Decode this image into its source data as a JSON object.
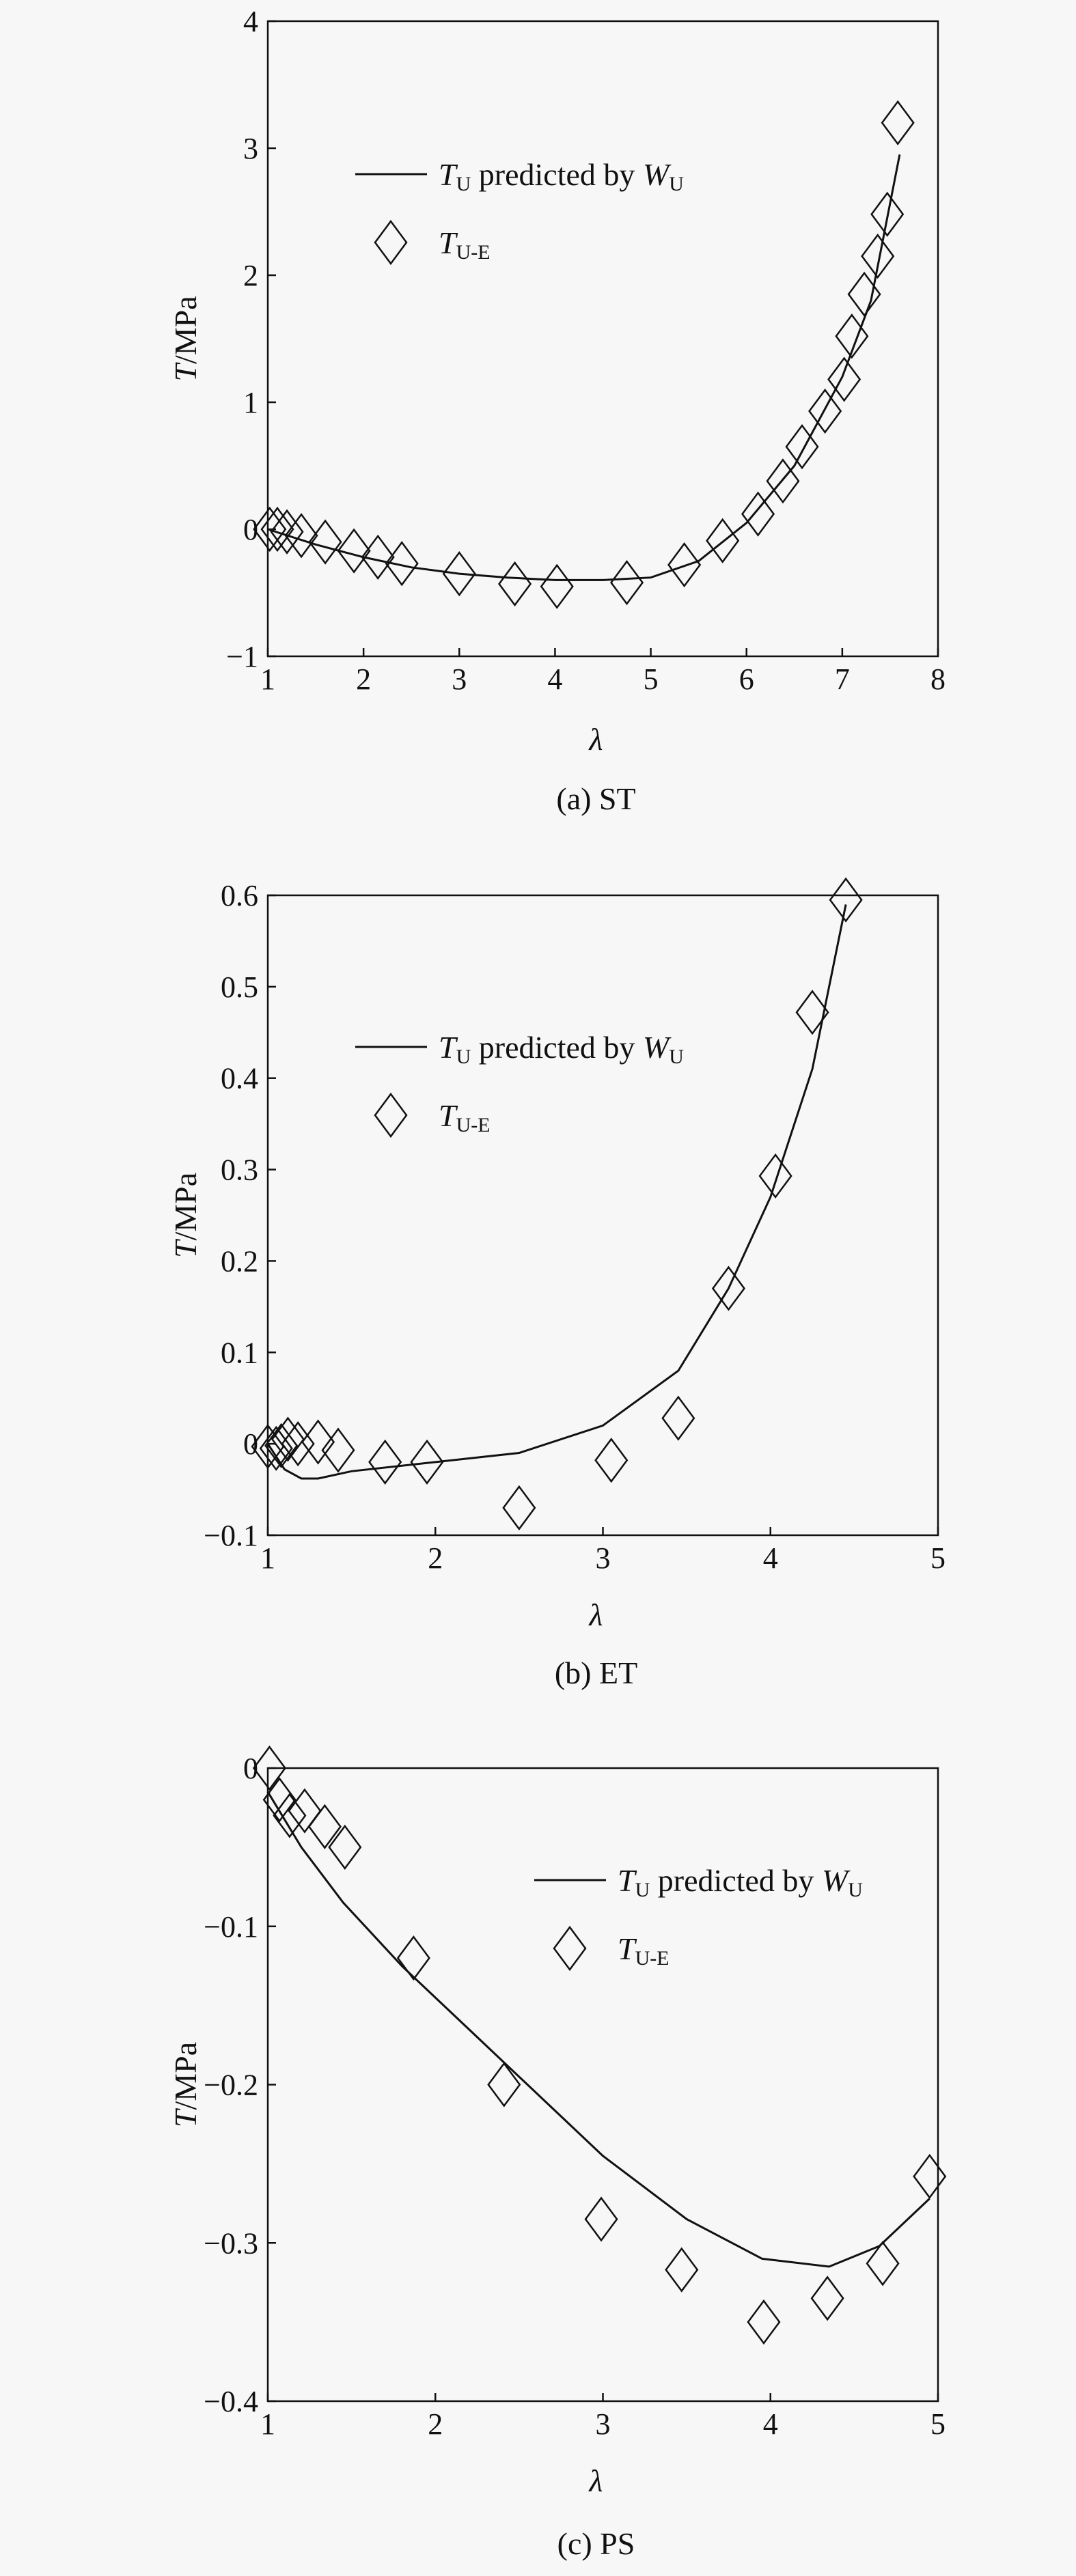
{
  "chart_data": [
    {
      "type": "line",
      "caption": "(a) ST",
      "xlabel": "λ",
      "ylabel_italic": "T",
      "ylabel_rest": "/MPa",
      "xlim": [
        1,
        8
      ],
      "ylim": [
        -1,
        4
      ],
      "xticks": [
        1,
        2,
        3,
        4,
        5,
        6,
        7,
        8
      ],
      "yticks": [
        -1,
        0,
        1,
        2,
        3,
        4
      ],
      "ytick_labels": [
        "−1",
        "0",
        "1",
        "2",
        "3",
        "4"
      ],
      "legend_position": "upper-left",
      "series": [
        {
          "kind": "line",
          "name_main": "T",
          "name_sub": "U",
          "name_mid": " predicted by ",
          "name_main2": "W",
          "name_sub2": "U",
          "x": [
            1.0,
            1.5,
            2.0,
            2.5,
            3.0,
            3.5,
            4.0,
            4.5,
            5.0,
            5.5,
            6.0,
            6.5,
            7.0,
            7.3,
            7.6
          ],
          "y": [
            0.0,
            -0.12,
            -0.22,
            -0.3,
            -0.35,
            -0.38,
            -0.4,
            -0.4,
            -0.38,
            -0.25,
            0.05,
            0.5,
            1.2,
            1.8,
            2.95
          ]
        },
        {
          "kind": "scatter",
          "marker": "diamond",
          "name_main": "T",
          "name_sub": "U-E",
          "x": [
            1.02,
            1.1,
            1.2,
            1.35,
            1.6,
            1.9,
            2.15,
            2.4,
            3.0,
            3.58,
            4.02,
            4.75,
            5.35,
            5.75,
            6.12,
            6.38,
            6.58,
            6.82,
            7.02,
            7.1,
            7.23,
            7.37,
            7.47,
            7.58
          ],
          "y": [
            0.0,
            0.0,
            -0.02,
            -0.05,
            -0.1,
            -0.17,
            -0.22,
            -0.27,
            -0.35,
            -0.43,
            -0.45,
            -0.42,
            -0.28,
            -0.09,
            0.12,
            0.38,
            0.65,
            0.93,
            1.18,
            1.52,
            1.85,
            2.15,
            2.48,
            3.2
          ]
        }
      ]
    },
    {
      "type": "line",
      "caption": "(b) ET",
      "xlabel": "λ",
      "ylabel_italic": "T",
      "ylabel_rest": "/MPa",
      "xlim": [
        1,
        5
      ],
      "ylim": [
        -0.1,
        0.6
      ],
      "xticks": [
        1,
        2,
        3,
        4,
        5
      ],
      "yticks": [
        -0.1,
        0,
        0.1,
        0.2,
        0.3,
        0.4,
        0.5,
        0.6
      ],
      "ytick_labels": [
        "−0.1",
        "0",
        "0.1",
        "0.2",
        "0.3",
        "0.4",
        "0.5",
        "0.6"
      ],
      "legend_position": "upper-left",
      "series": [
        {
          "kind": "line",
          "name_main": "T",
          "name_sub": "U",
          "name_mid": " predicted by ",
          "name_main2": "W",
          "name_sub2": "U",
          "x": [
            1.0,
            1.1,
            1.2,
            1.3,
            1.5,
            2.0,
            2.5,
            3.0,
            3.45,
            3.75,
            4.0,
            4.25,
            4.45
          ],
          "y": [
            0.0,
            -0.028,
            -0.038,
            -0.038,
            -0.03,
            -0.02,
            -0.01,
            0.02,
            0.08,
            0.17,
            0.27,
            0.41,
            0.59
          ]
        },
        {
          "kind": "scatter",
          "marker": "diamond",
          "name_main": "T",
          "name_sub": "U-E",
          "x": [
            1.0,
            1.05,
            1.08,
            1.12,
            1.18,
            1.3,
            1.42,
            1.7,
            1.95,
            2.5,
            3.05,
            3.45,
            3.75,
            4.03,
            4.25,
            4.45
          ],
          "y": [
            -0.003,
            -0.005,
            -0.002,
            0.005,
            0.0,
            0.002,
            -0.007,
            -0.02,
            -0.02,
            -0.07,
            -0.018,
            0.028,
            0.17,
            0.293,
            0.472,
            0.595
          ]
        }
      ]
    },
    {
      "type": "line",
      "caption": "(c) PS",
      "xlabel": "λ",
      "ylabel_italic": "T",
      "ylabel_rest": "/MPa",
      "xlim": [
        1,
        5
      ],
      "ylim": [
        -0.4,
        0
      ],
      "xticks": [
        1,
        2,
        3,
        4,
        5
      ],
      "yticks": [
        -0.4,
        -0.3,
        -0.2,
        -0.1,
        0
      ],
      "ytick_labels": [
        "−0.4",
        "−0.3",
        "−0.2",
        "−0.1",
        "0"
      ],
      "legend_position": "upper-right",
      "series": [
        {
          "kind": "line",
          "name_main": "T",
          "name_sub": "U",
          "name_mid": " predicted by ",
          "name_main2": "W",
          "name_sub2": "U",
          "x": [
            1.0,
            1.2,
            1.45,
            1.8,
            2.2,
            2.6,
            3.0,
            3.5,
            3.95,
            4.35,
            4.65,
            4.95
          ],
          "y": [
            -0.015,
            -0.05,
            -0.085,
            -0.125,
            -0.165,
            -0.205,
            -0.245,
            -0.285,
            -0.31,
            -0.315,
            -0.302,
            -0.272
          ]
        },
        {
          "kind": "scatter",
          "marker": "diamond",
          "name_main": "T",
          "name_sub": "U-E",
          "x": [
            1.01,
            1.07,
            1.13,
            1.22,
            1.34,
            1.46,
            1.87,
            2.41,
            2.99,
            3.47,
            3.96,
            4.34,
            4.67,
            4.95
          ],
          "y": [
            0.0,
            -0.02,
            -0.03,
            -0.027,
            -0.037,
            -0.05,
            -0.12,
            -0.2,
            -0.285,
            -0.317,
            -0.35,
            -0.335,
            -0.313,
            -0.258
          ]
        }
      ]
    }
  ]
}
